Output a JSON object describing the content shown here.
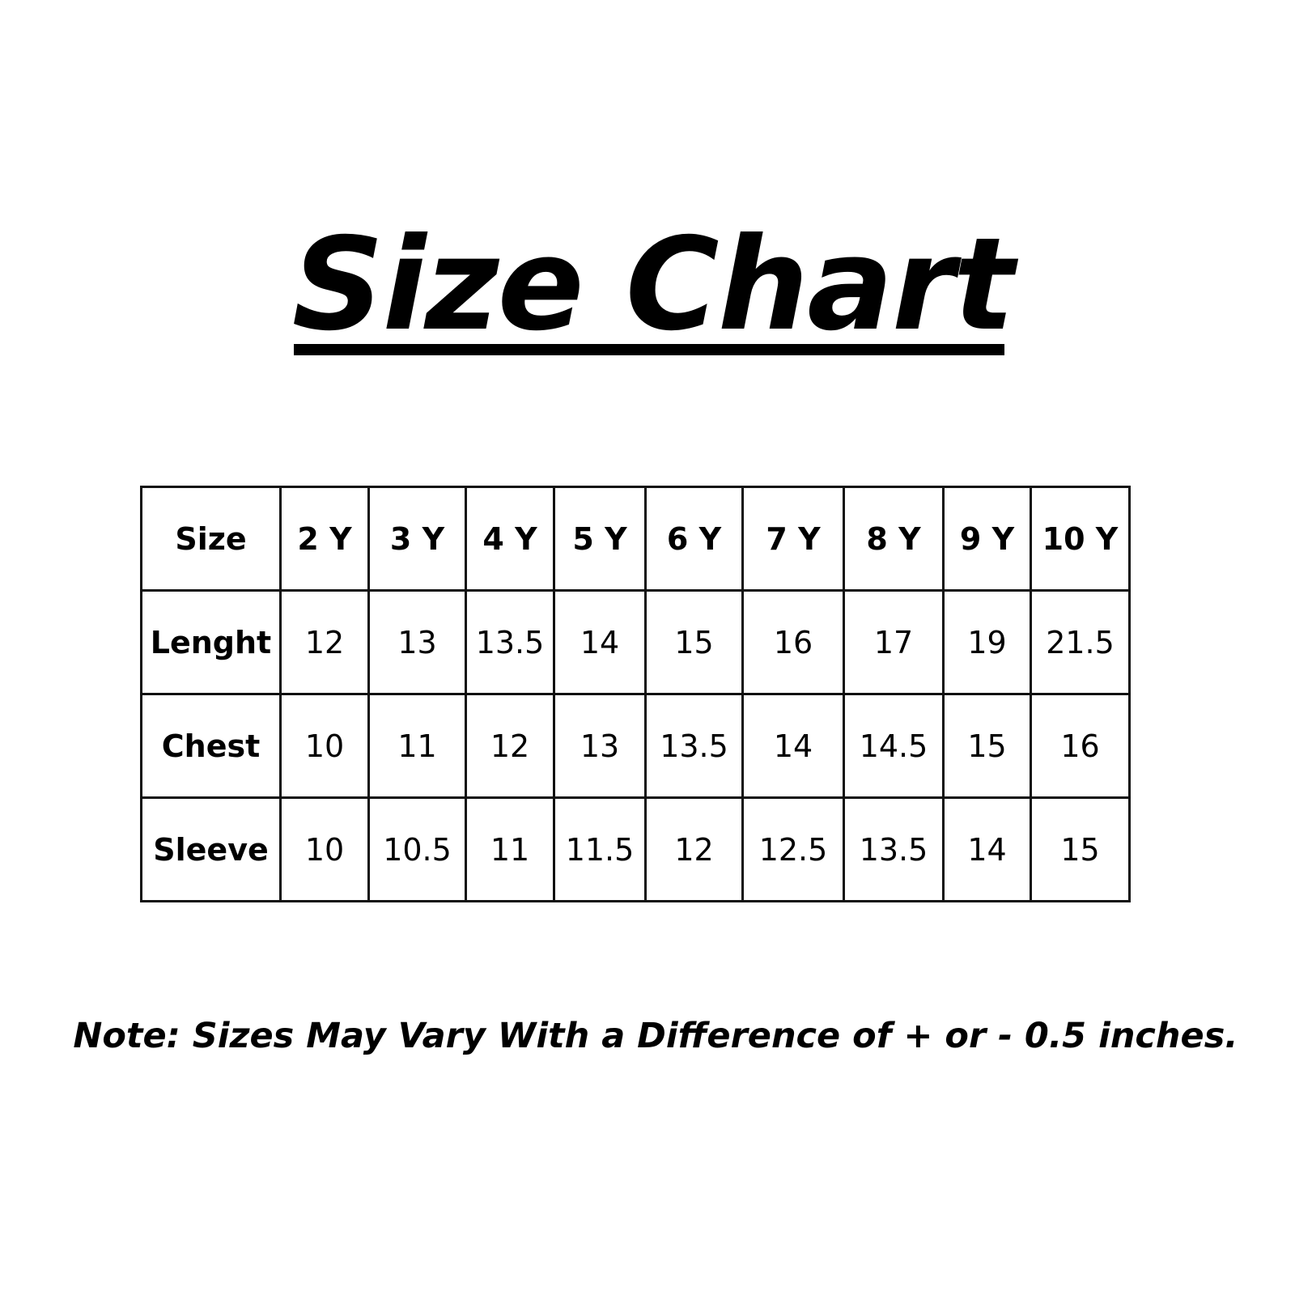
{
  "title": "Size Chart",
  "chart_data": {
    "type": "table",
    "title": "Size Chart",
    "row_header_label": "Size",
    "columns": [
      "2 Y",
      "3 Y",
      "4 Y",
      "5 Y",
      "6 Y",
      "7 Y",
      "8 Y",
      "9 Y",
      "10 Y"
    ],
    "rows": [
      {
        "label": "Lenght",
        "values": [
          "12",
          "13",
          "13.5",
          "14",
          "15",
          "16",
          "17",
          "19",
          "21.5"
        ]
      },
      {
        "label": "Chest",
        "values": [
          "10",
          "11",
          "12",
          "13",
          "13.5",
          "14",
          "14.5",
          "15",
          "16"
        ]
      },
      {
        "label": "Sleeve",
        "values": [
          "10",
          "10.5",
          "11",
          "11.5",
          "12",
          "12.5",
          "13.5",
          "14",
          "15"
        ]
      }
    ]
  },
  "note": "Note: Sizes May Vary With a Difference of + or - 0.5 inches.",
  "colors": {
    "text": "#000000",
    "background": "#ffffff",
    "border": "#111111"
  }
}
